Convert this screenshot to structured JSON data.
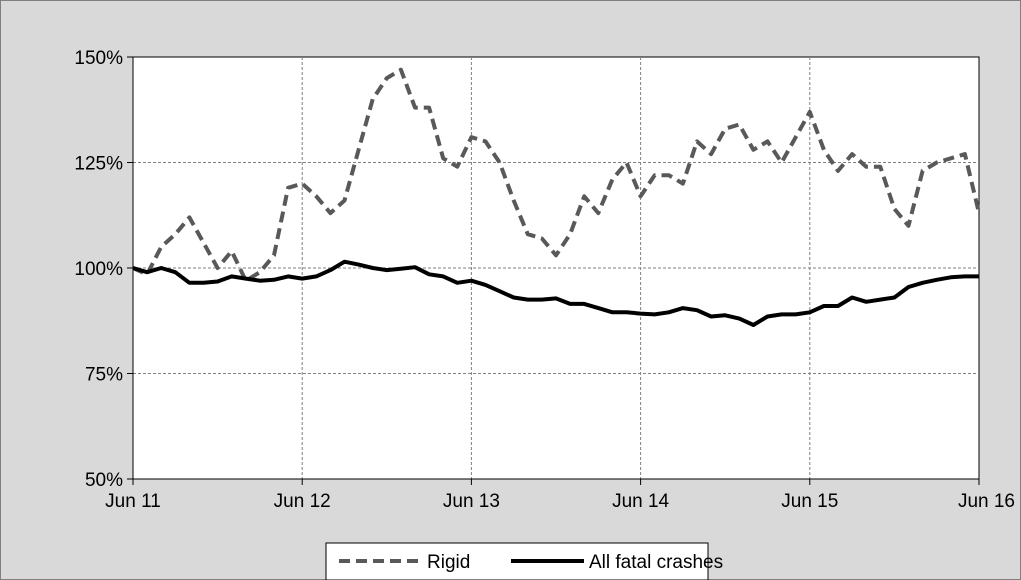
{
  "chart_data": {
    "type": "line",
    "title": "",
    "xlabel": "",
    "ylabel": "",
    "x_ticks": [
      "Jun 11",
      "Jun 12",
      "Jun 13",
      "Jun 14",
      "Jun 15",
      "Jun 16"
    ],
    "y_ticks": [
      "50%",
      "75%",
      "100%",
      "125%",
      "150%"
    ],
    "ylim": [
      50,
      150
    ],
    "xlim": [
      0,
      60
    ],
    "x_unit": "months since Jun 11",
    "grid": true,
    "legend_position": "bottom",
    "series": [
      {
        "name": "Rigid",
        "style": "dashed",
        "color": "#595959",
        "x": [
          0,
          1,
          2,
          3,
          4,
          5,
          6,
          7,
          8,
          9,
          10,
          11,
          12,
          13,
          14,
          15,
          16,
          17,
          18,
          19,
          20,
          21,
          22,
          23,
          24,
          25,
          26,
          27,
          28,
          29,
          30,
          31,
          32,
          33,
          34,
          35,
          36,
          37,
          38,
          39,
          40,
          41,
          42,
          43,
          44,
          45,
          46,
          47,
          48,
          49,
          50,
          51,
          52,
          53,
          54,
          55,
          56,
          57,
          58,
          59,
          60
        ],
        "values": [
          100,
          98.5,
          105,
          108,
          112,
          106,
          100,
          104,
          97,
          99,
          103,
          119,
          120,
          117,
          113,
          116,
          128,
          140,
          145,
          147,
          138,
          138,
          126,
          124,
          131,
          130,
          125,
          116,
          108,
          107,
          103,
          108,
          117,
          113,
          121,
          125,
          117,
          122,
          122,
          120,
          130,
          127,
          133,
          134,
          128,
          130,
          125,
          131,
          137,
          128,
          123,
          127,
          124,
          124,
          114,
          110,
          123,
          125,
          126,
          127,
          113
        ]
      },
      {
        "name": "All fatal crashes",
        "style": "solid",
        "color": "#000000",
        "x": [
          0,
          1,
          2,
          3,
          4,
          5,
          6,
          7,
          8,
          9,
          10,
          11,
          12,
          13,
          14,
          15,
          16,
          17,
          18,
          19,
          20,
          21,
          22,
          23,
          24,
          25,
          26,
          27,
          28,
          29,
          30,
          31,
          32,
          33,
          34,
          35,
          36,
          37,
          38,
          39,
          40,
          41,
          42,
          43,
          44,
          45,
          46,
          47,
          48,
          49,
          50,
          51,
          52,
          53,
          54,
          55,
          56,
          57,
          58,
          59,
          60
        ],
        "values": [
          100,
          99,
          100,
          99,
          96.5,
          96.5,
          96.8,
          98,
          97.5,
          97,
          97.2,
          98,
          97.5,
          98,
          99.5,
          101.5,
          100.8,
          100,
          99.5,
          99.8,
          100.2,
          98.5,
          98,
          96.5,
          97,
          96,
          94.5,
          93,
          92.5,
          92.5,
          92.8,
          91.5,
          91.5,
          90.5,
          89.5,
          89.5,
          89.2,
          89,
          89.5,
          90.5,
          90,
          88.5,
          88.8,
          88,
          86.5,
          88.5,
          89,
          89,
          89.5,
          91,
          91,
          93,
          92,
          92.5,
          93,
          95.5,
          96.5,
          97.2,
          97.8,
          98,
          98
        ]
      }
    ]
  }
}
